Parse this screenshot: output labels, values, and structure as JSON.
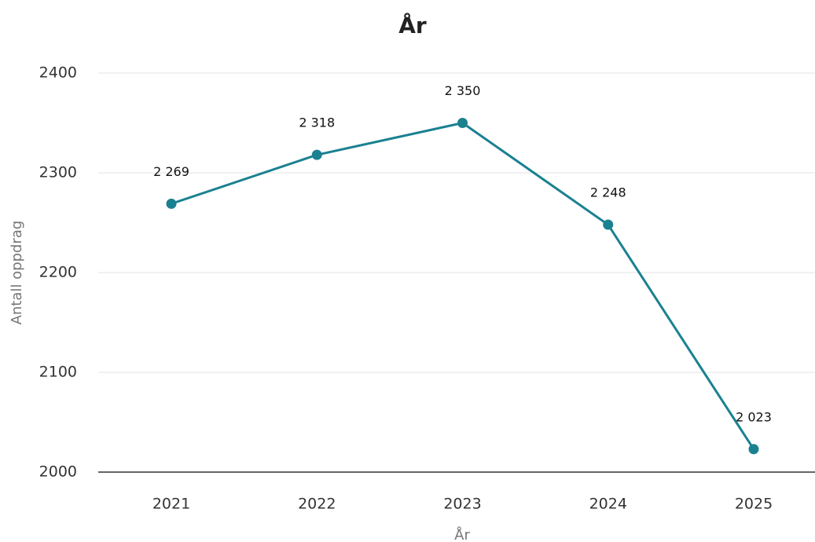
{
  "chart_data": {
    "type": "line",
    "title": "År",
    "x_label": "År",
    "y_label": "Antall oppdrag",
    "categories": [
      "2021",
      "2022",
      "2023",
      "2024",
      "2025"
    ],
    "values": [
      2269,
      2318,
      2350,
      2248,
      2023
    ],
    "value_labels": [
      "2 269",
      "2 318",
      "2 350",
      "2 248",
      "2 023"
    ],
    "color": "#1a8191",
    "ylim": [
      2000,
      2400
    ],
    "yticks": [
      2000,
      2100,
      2200,
      2300,
      2400
    ],
    "grid": true
  }
}
